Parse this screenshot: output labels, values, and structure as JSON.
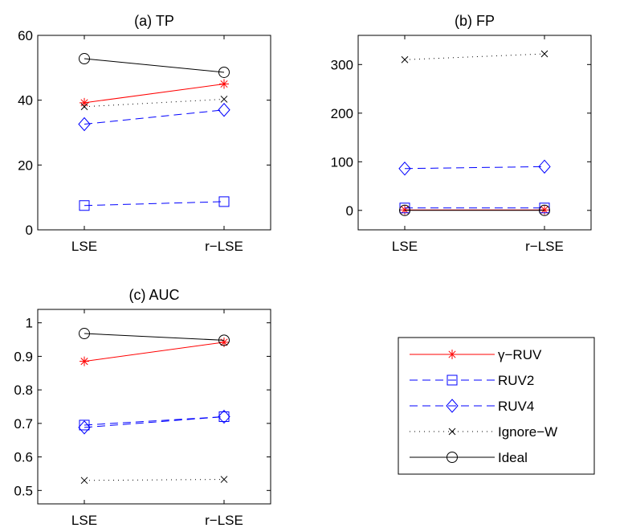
{
  "chart_data": [
    {
      "type": "line",
      "title": "(a) TP",
      "categories": [
        "LSE",
        "r−LSE"
      ],
      "ylim": [
        0,
        60
      ],
      "yticks": [
        0,
        20,
        40,
        60
      ],
      "series": [
        {
          "name": "γ−RUV",
          "values": [
            39.2,
            45.0
          ]
        },
        {
          "name": "RUV2",
          "values": [
            7.5,
            8.7
          ]
        },
        {
          "name": "RUV4",
          "values": [
            32.6,
            37.0
          ]
        },
        {
          "name": "Ignore−W",
          "values": [
            38.0,
            40.3
          ]
        },
        {
          "name": "Ideal",
          "values": [
            52.8,
            48.6
          ]
        }
      ]
    },
    {
      "type": "line",
      "title": "(b) FP",
      "categories": [
        "LSE",
        "r−LSE"
      ],
      "ylim": [
        -40,
        360
      ],
      "yticks": [
        0,
        100,
        200,
        300
      ],
      "series": [
        {
          "name": "γ−RUV",
          "values": [
            1,
            1
          ]
        },
        {
          "name": "RUV2",
          "values": [
            5,
            5
          ]
        },
        {
          "name": "RUV4",
          "values": [
            86,
            90
          ]
        },
        {
          "name": "Ignore−W",
          "values": [
            310,
            322
          ]
        },
        {
          "name": "Ideal",
          "values": [
            0,
            0
          ]
        }
      ]
    },
    {
      "type": "line",
      "title": "(c) AUC",
      "categories": [
        "LSE",
        "r−LSE"
      ],
      "ylim": [
        0.46,
        1.04
      ],
      "yticks": [
        0.5,
        0.6,
        0.7,
        0.8,
        0.9,
        1
      ],
      "series": [
        {
          "name": "γ−RUV",
          "values": [
            0.885,
            0.942
          ]
        },
        {
          "name": "RUV2",
          "values": [
            0.695,
            0.72
          ]
        },
        {
          "name": "RUV4",
          "values": [
            0.688,
            0.72
          ]
        },
        {
          "name": "Ignore−W",
          "values": [
            0.53,
            0.533
          ]
        },
        {
          "name": "Ideal",
          "values": [
            0.968,
            0.948
          ]
        }
      ]
    }
  ],
  "legend": {
    "placement": "bottom-right",
    "entries": [
      "γ−RUV",
      "RUV2",
      "RUV4",
      "Ignore−W",
      "Ideal"
    ]
  },
  "styles": {
    "γ−RUV": {
      "color": "#ff0000",
      "dash": "solid",
      "marker": "star"
    },
    "RUV2": {
      "color": "#0000ff",
      "dash": "dashed",
      "marker": "square"
    },
    "RUV4": {
      "color": "#0000ff",
      "dash": "dashed",
      "marker": "diamond"
    },
    "Ignore−W": {
      "color": "#000000",
      "dash": "dotted",
      "marker": "x"
    },
    "Ideal": {
      "color": "#000000",
      "dash": "solid",
      "marker": "circle"
    }
  }
}
